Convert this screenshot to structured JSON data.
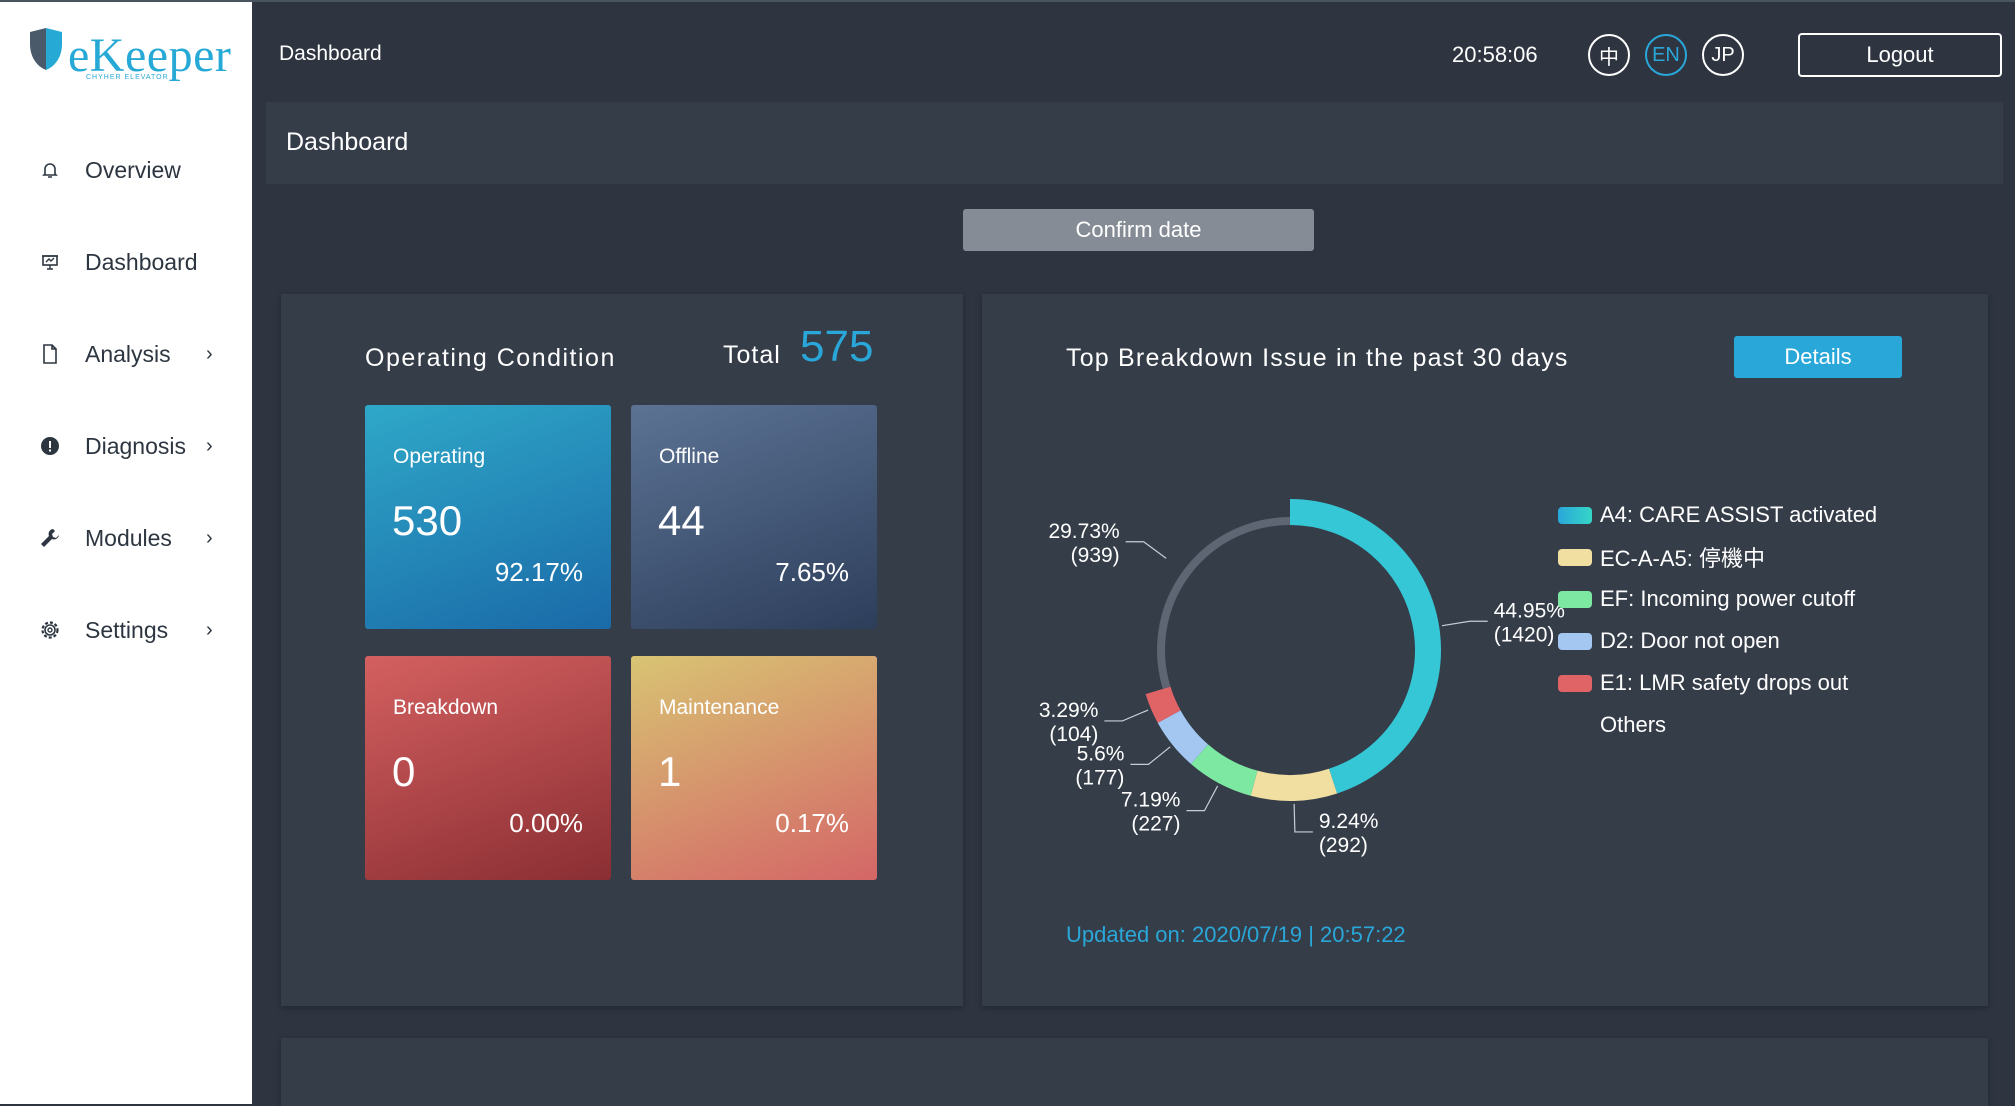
{
  "brand": {
    "logo_text": "eKeeper",
    "logo_subtext": "CHYHER ELEVATOR"
  },
  "sidebar": {
    "items": [
      {
        "label": "Overview",
        "icon": "bell-icon",
        "has_submenu": false
      },
      {
        "label": "Dashboard",
        "icon": "presentation-icon",
        "has_submenu": false
      },
      {
        "label": "Analysis",
        "icon": "document-icon",
        "has_submenu": true
      },
      {
        "label": "Diagnosis",
        "icon": "alert-circle-icon",
        "has_submenu": true
      },
      {
        "label": "Modules",
        "icon": "wrench-icon",
        "has_submenu": true
      },
      {
        "label": "Settings",
        "icon": "gear-icon",
        "has_submenu": true
      }
    ],
    "chevron": "›"
  },
  "topbar": {
    "title": "Dashboard",
    "clock": "20:58:06",
    "languages": [
      "中",
      "EN",
      "JP"
    ],
    "active_language": "EN",
    "logout_label": "Logout"
  },
  "page": {
    "header": "Dashboard",
    "confirm_label": "Confirm date"
  },
  "operating": {
    "title": "Operating Condition",
    "total_label": "Total",
    "total_value": "575",
    "cards": [
      {
        "label": "Operating",
        "value": "530",
        "percent": "92.17%"
      },
      {
        "label": "Offline",
        "value": "44",
        "percent": "7.65%"
      },
      {
        "label": "Breakdown",
        "value": "0",
        "percent": "0.00%"
      },
      {
        "label": "Maintenance",
        "value": "1",
        "percent": "0.17%"
      }
    ]
  },
  "breakdown": {
    "title": "Top Breakdown Issue in the past 30 days",
    "details_label": "Details",
    "updated": "Updated on: 2020/07/19 | 20:57:22"
  },
  "chart_data": {
    "type": "pie",
    "style": "donut",
    "title": "Top Breakdown Issue in the past 30 days",
    "series": [
      {
        "name": "A4: CARE ASSIST activated",
        "value": 1420,
        "percent": "44.95%",
        "color": "#35c7d6"
      },
      {
        "name": "EC-A-A5: 停機中",
        "value": 292,
        "percent": "9.24%",
        "color": "#f1dfa1"
      },
      {
        "name": "EF: Incoming power cutoff",
        "value": 227,
        "percent": "7.19%",
        "color": "#7de8a2"
      },
      {
        "name": "D2: Door not open",
        "value": 177,
        "percent": "5.6%",
        "color": "#a3c7f0"
      },
      {
        "name": "E1: LMR safety drops out",
        "value": 104,
        "percent": "3.29%",
        "color": "#e06466"
      },
      {
        "name": "Others",
        "value": 939,
        "percent": "29.73%",
        "color": "#5d6672"
      }
    ],
    "legend_position": "right"
  }
}
